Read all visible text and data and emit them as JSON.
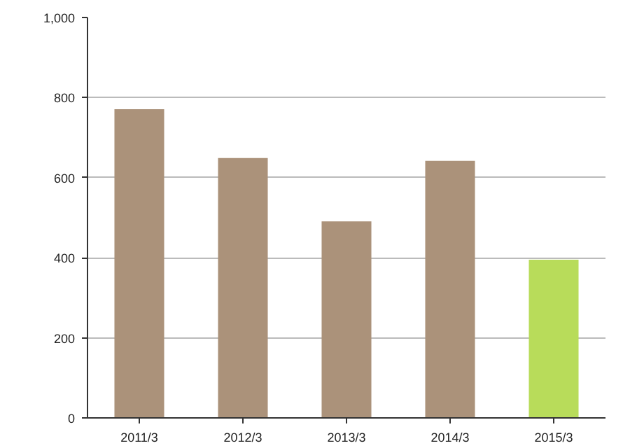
{
  "chart_data": {
    "type": "bar",
    "categories": [
      "2011/3",
      "2012/3",
      "2013/3",
      "2014/3",
      "2015/3"
    ],
    "values": [
      771,
      649,
      491,
      642,
      395
    ],
    "colors": [
      "#ab927a",
      "#ab927a",
      "#ab927a",
      "#ab927a",
      "#b8dc5a"
    ],
    "ylim": [
      0,
      1000
    ],
    "yticks": [
      0,
      200,
      400,
      600,
      800,
      {
        "value": 1000,
        "label": "1,000"
      }
    ],
    "grid": "y"
  }
}
